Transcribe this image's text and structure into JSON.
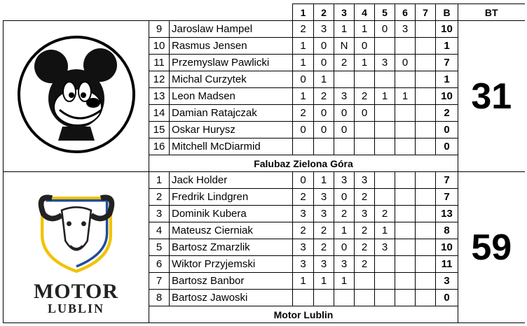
{
  "header": {
    "heats": [
      "1",
      "2",
      "3",
      "4",
      "5",
      "6",
      "7"
    ],
    "bonus": "B",
    "total": "BT"
  },
  "teams": [
    {
      "name": "Falubaz Zielona Góra",
      "logo": "mickey-mouse-logo",
      "total": "31",
      "riders": [
        {
          "no": "9",
          "name": "Jaroslaw Hampel",
          "heats": [
            "2",
            "3",
            "1",
            "1",
            "0",
            "3",
            ""
          ],
          "b": "10"
        },
        {
          "no": "10",
          "name": "Rasmus Jensen",
          "heats": [
            "1",
            "0",
            "N",
            "0",
            "",
            "",
            ""
          ],
          "b": "1"
        },
        {
          "no": "11",
          "name": "Przemyslaw Pawlicki",
          "heats": [
            "1",
            "0",
            "2",
            "1",
            "3",
            "0",
            ""
          ],
          "b": "7"
        },
        {
          "no": "12",
          "name": "Michal Curzytek",
          "heats": [
            "0",
            "1",
            "",
            "",
            "",
            "",
            ""
          ],
          "b": "1"
        },
        {
          "no": "13",
          "name": "Leon Madsen",
          "heats": [
            "1",
            "2",
            "3",
            "2",
            "1",
            "1",
            ""
          ],
          "b": "10"
        },
        {
          "no": "14",
          "name": "Damian Ratajczak",
          "heats": [
            "2",
            "0",
            "0",
            "0",
            "",
            "",
            ""
          ],
          "b": "2"
        },
        {
          "no": "15",
          "name": "Oskar Hurysz",
          "heats": [
            "0",
            "0",
            "0",
            "",
            "",
            "",
            ""
          ],
          "b": "0"
        },
        {
          "no": "16",
          "name": "Mitchell McDiarmid",
          "heats": [
            "",
            "",
            "",
            "",
            "",
            "",
            ""
          ],
          "b": "0"
        }
      ]
    },
    {
      "name": "Motor Lublin",
      "logo": "ram-head-logo",
      "logo_text": [
        "MOTOR",
        "LUBLIN"
      ],
      "total": "59",
      "riders": [
        {
          "no": "1",
          "name": "Jack Holder",
          "heats": [
            "0",
            "1",
            "3",
            "3",
            "",
            "",
            ""
          ],
          "b": "7"
        },
        {
          "no": "2",
          "name": "Fredrik Lindgren",
          "heats": [
            "2",
            "3",
            "0",
            "2",
            "",
            "",
            ""
          ],
          "b": "7"
        },
        {
          "no": "3",
          "name": "Dominik Kubera",
          "heats": [
            "3",
            "3",
            "2",
            "3",
            "2",
            "",
            ""
          ],
          "b": "13"
        },
        {
          "no": "4",
          "name": "Mateusz Cierniak",
          "heats": [
            "2",
            "2",
            "1",
            "2",
            "1",
            "",
            ""
          ],
          "b": "8"
        },
        {
          "no": "5",
          "name": "Bartosz Zmarzlik",
          "heats": [
            "3",
            "2",
            "0",
            "2",
            "3",
            "",
            ""
          ],
          "b": "10"
        },
        {
          "no": "6",
          "name": "Wiktor Przyjemski",
          "heats": [
            "3",
            "3",
            "3",
            "2",
            "",
            "",
            ""
          ],
          "b": "11"
        },
        {
          "no": "7",
          "name": "Bartosz Banbor",
          "heats": [
            "1",
            "1",
            "1",
            "",
            "",
            "",
            ""
          ],
          "b": "3"
        },
        {
          "no": "8",
          "name": "Bartosz Jawoski",
          "heats": [
            "",
            "",
            "",
            "",
            "",
            "",
            ""
          ],
          "b": "0"
        }
      ]
    }
  ],
  "colors": {
    "ram_blue": "#1f4e9c",
    "ram_yellow": "#f2c200"
  }
}
